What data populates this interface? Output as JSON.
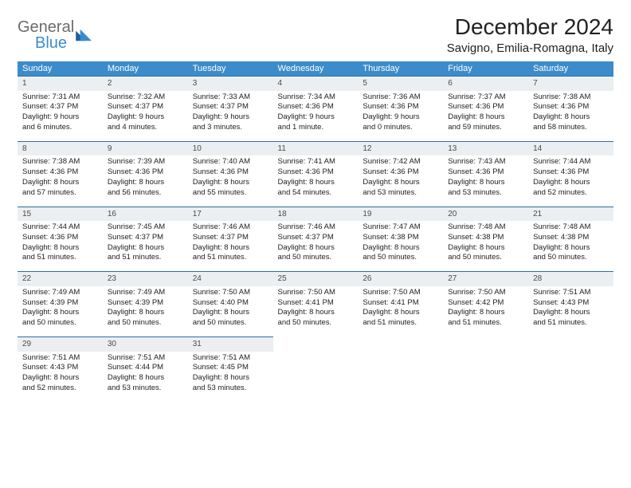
{
  "header": {
    "logo_general": "General",
    "logo_blue": "Blue",
    "title": "December 2024",
    "subtitle": "Savigno, Emilia-Romagna, Italy"
  },
  "colors": {
    "header_bg": "#3c8ccb",
    "header_fg": "#ffffff",
    "daynum_bg": "#eceff1",
    "row_border": "#2f6ea5",
    "logo_gray": "#6b6b6b",
    "logo_blue": "#3c8ccb"
  },
  "weekdays": [
    "Sunday",
    "Monday",
    "Tuesday",
    "Wednesday",
    "Thursday",
    "Friday",
    "Saturday"
  ],
  "weeks": [
    [
      {
        "n": "1",
        "sr": "Sunrise: 7:31 AM",
        "ss": "Sunset: 4:37 PM",
        "dl1": "Daylight: 9 hours",
        "dl2": "and 6 minutes."
      },
      {
        "n": "2",
        "sr": "Sunrise: 7:32 AM",
        "ss": "Sunset: 4:37 PM",
        "dl1": "Daylight: 9 hours",
        "dl2": "and 4 minutes."
      },
      {
        "n": "3",
        "sr": "Sunrise: 7:33 AM",
        "ss": "Sunset: 4:37 PM",
        "dl1": "Daylight: 9 hours",
        "dl2": "and 3 minutes."
      },
      {
        "n": "4",
        "sr": "Sunrise: 7:34 AM",
        "ss": "Sunset: 4:36 PM",
        "dl1": "Daylight: 9 hours",
        "dl2": "and 1 minute."
      },
      {
        "n": "5",
        "sr": "Sunrise: 7:36 AM",
        "ss": "Sunset: 4:36 PM",
        "dl1": "Daylight: 9 hours",
        "dl2": "and 0 minutes."
      },
      {
        "n": "6",
        "sr": "Sunrise: 7:37 AM",
        "ss": "Sunset: 4:36 PM",
        "dl1": "Daylight: 8 hours",
        "dl2": "and 59 minutes."
      },
      {
        "n": "7",
        "sr": "Sunrise: 7:38 AM",
        "ss": "Sunset: 4:36 PM",
        "dl1": "Daylight: 8 hours",
        "dl2": "and 58 minutes."
      }
    ],
    [
      {
        "n": "8",
        "sr": "Sunrise: 7:38 AM",
        "ss": "Sunset: 4:36 PM",
        "dl1": "Daylight: 8 hours",
        "dl2": "and 57 minutes."
      },
      {
        "n": "9",
        "sr": "Sunrise: 7:39 AM",
        "ss": "Sunset: 4:36 PM",
        "dl1": "Daylight: 8 hours",
        "dl2": "and 56 minutes."
      },
      {
        "n": "10",
        "sr": "Sunrise: 7:40 AM",
        "ss": "Sunset: 4:36 PM",
        "dl1": "Daylight: 8 hours",
        "dl2": "and 55 minutes."
      },
      {
        "n": "11",
        "sr": "Sunrise: 7:41 AM",
        "ss": "Sunset: 4:36 PM",
        "dl1": "Daylight: 8 hours",
        "dl2": "and 54 minutes."
      },
      {
        "n": "12",
        "sr": "Sunrise: 7:42 AM",
        "ss": "Sunset: 4:36 PM",
        "dl1": "Daylight: 8 hours",
        "dl2": "and 53 minutes."
      },
      {
        "n": "13",
        "sr": "Sunrise: 7:43 AM",
        "ss": "Sunset: 4:36 PM",
        "dl1": "Daylight: 8 hours",
        "dl2": "and 53 minutes."
      },
      {
        "n": "14",
        "sr": "Sunrise: 7:44 AM",
        "ss": "Sunset: 4:36 PM",
        "dl1": "Daylight: 8 hours",
        "dl2": "and 52 minutes."
      }
    ],
    [
      {
        "n": "15",
        "sr": "Sunrise: 7:44 AM",
        "ss": "Sunset: 4:36 PM",
        "dl1": "Daylight: 8 hours",
        "dl2": "and 51 minutes."
      },
      {
        "n": "16",
        "sr": "Sunrise: 7:45 AM",
        "ss": "Sunset: 4:37 PM",
        "dl1": "Daylight: 8 hours",
        "dl2": "and 51 minutes."
      },
      {
        "n": "17",
        "sr": "Sunrise: 7:46 AM",
        "ss": "Sunset: 4:37 PM",
        "dl1": "Daylight: 8 hours",
        "dl2": "and 51 minutes."
      },
      {
        "n": "18",
        "sr": "Sunrise: 7:46 AM",
        "ss": "Sunset: 4:37 PM",
        "dl1": "Daylight: 8 hours",
        "dl2": "and 50 minutes."
      },
      {
        "n": "19",
        "sr": "Sunrise: 7:47 AM",
        "ss": "Sunset: 4:38 PM",
        "dl1": "Daylight: 8 hours",
        "dl2": "and 50 minutes."
      },
      {
        "n": "20",
        "sr": "Sunrise: 7:48 AM",
        "ss": "Sunset: 4:38 PM",
        "dl1": "Daylight: 8 hours",
        "dl2": "and 50 minutes."
      },
      {
        "n": "21",
        "sr": "Sunrise: 7:48 AM",
        "ss": "Sunset: 4:38 PM",
        "dl1": "Daylight: 8 hours",
        "dl2": "and 50 minutes."
      }
    ],
    [
      {
        "n": "22",
        "sr": "Sunrise: 7:49 AM",
        "ss": "Sunset: 4:39 PM",
        "dl1": "Daylight: 8 hours",
        "dl2": "and 50 minutes."
      },
      {
        "n": "23",
        "sr": "Sunrise: 7:49 AM",
        "ss": "Sunset: 4:39 PM",
        "dl1": "Daylight: 8 hours",
        "dl2": "and 50 minutes."
      },
      {
        "n": "24",
        "sr": "Sunrise: 7:50 AM",
        "ss": "Sunset: 4:40 PM",
        "dl1": "Daylight: 8 hours",
        "dl2": "and 50 minutes."
      },
      {
        "n": "25",
        "sr": "Sunrise: 7:50 AM",
        "ss": "Sunset: 4:41 PM",
        "dl1": "Daylight: 8 hours",
        "dl2": "and 50 minutes."
      },
      {
        "n": "26",
        "sr": "Sunrise: 7:50 AM",
        "ss": "Sunset: 4:41 PM",
        "dl1": "Daylight: 8 hours",
        "dl2": "and 51 minutes."
      },
      {
        "n": "27",
        "sr": "Sunrise: 7:50 AM",
        "ss": "Sunset: 4:42 PM",
        "dl1": "Daylight: 8 hours",
        "dl2": "and 51 minutes."
      },
      {
        "n": "28",
        "sr": "Sunrise: 7:51 AM",
        "ss": "Sunset: 4:43 PM",
        "dl1": "Daylight: 8 hours",
        "dl2": "and 51 minutes."
      }
    ],
    [
      {
        "n": "29",
        "sr": "Sunrise: 7:51 AM",
        "ss": "Sunset: 4:43 PM",
        "dl1": "Daylight: 8 hours",
        "dl2": "and 52 minutes."
      },
      {
        "n": "30",
        "sr": "Sunrise: 7:51 AM",
        "ss": "Sunset: 4:44 PM",
        "dl1": "Daylight: 8 hours",
        "dl2": "and 53 minutes."
      },
      {
        "n": "31",
        "sr": "Sunrise: 7:51 AM",
        "ss": "Sunset: 4:45 PM",
        "dl1": "Daylight: 8 hours",
        "dl2": "and 53 minutes."
      },
      {
        "empty": true
      },
      {
        "empty": true
      },
      {
        "empty": true
      },
      {
        "empty": true
      }
    ]
  ]
}
